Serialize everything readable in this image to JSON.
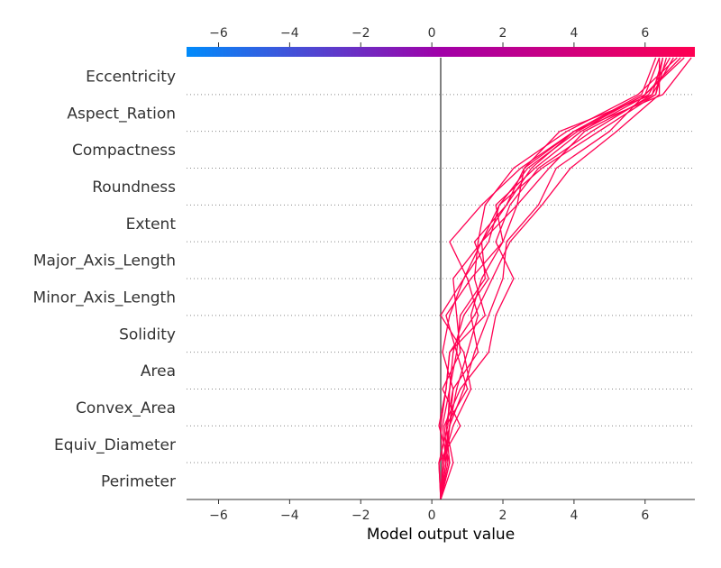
{
  "chart_data": {
    "type": "line",
    "title": "",
    "xlabel": "Model output value",
    "ylabel": "",
    "xlim": [
      -6.9,
      7.4
    ],
    "xticks": [
      -6,
      -4,
      -2,
      0,
      2,
      4,
      6
    ],
    "base_value": 0.25,
    "features": [
      "Eccentricity",
      "Aspect_Ration",
      "Compactness",
      "Roundness",
      "Extent",
      "Major_Axis_Length",
      "Minor_Axis_Length",
      "Solidity",
      "Area",
      "Convex_Area",
      "Equiv_Diameter",
      "Perimeter"
    ],
    "grid": "dotted-horizontal",
    "colorbar": {
      "position": "top",
      "from": "#008bfb",
      "mid": "#a100a8",
      "to": "#ff0052"
    },
    "line_color": "#ff0052",
    "series": [
      {
        "values": [
          0.25,
          0.3,
          0.5,
          0.7,
          1.0,
          1.3,
          1.0,
          0.5,
          1.4,
          2.5,
          4.0,
          6.5,
          7.3
        ]
      },
      {
        "values": [
          0.25,
          0.4,
          0.3,
          0.5,
          0.6,
          0.9,
          1.6,
          1.2,
          2.1,
          2.8,
          4.0,
          6.0,
          7.1
        ]
      },
      {
        "values": [
          0.25,
          0.5,
          0.2,
          0.4,
          0.5,
          1.5,
          1.2,
          1.3,
          1.5,
          2.3,
          3.8,
          5.8,
          6.9
        ]
      },
      {
        "values": [
          0.25,
          0.2,
          0.8,
          0.3,
          0.8,
          0.7,
          0.6,
          1.4,
          2.4,
          2.6,
          3.6,
          6.2,
          6.8
        ]
      },
      {
        "values": [
          0.25,
          0.6,
          0.4,
          0.6,
          1.3,
          1.1,
          1.4,
          2.0,
          1.8,
          2.9,
          4.2,
          6.1,
          6.7
        ]
      },
      {
        "values": [
          0.25,
          0.3,
          0.6,
          1.1,
          0.9,
          0.25,
          0.9,
          1.6,
          1.9,
          3.1,
          4.7,
          6.3,
          6.6
        ]
      },
      {
        "values": [
          0.25,
          0.45,
          0.35,
          0.8,
          1.6,
          1.8,
          2.3,
          1.8,
          2.2,
          3.0,
          4.5,
          6.2,
          6.5
        ]
      },
      {
        "values": [
          0.25,
          0.35,
          0.5,
          0.9,
          1.2,
          1.6,
          2.0,
          2.1,
          3.0,
          3.5,
          5.0,
          6.0,
          6.4
        ]
      },
      {
        "values": [
          0.25,
          0.2,
          0.45,
          0.5,
          0.7,
          0.4,
          1.1,
          2.0,
          2.4,
          3.3,
          4.3,
          6.3,
          6.5
        ]
      },
      {
        "values": [
          0.25,
          0.5,
          0.4,
          1.0,
          0.7,
          0.8,
          1.5,
          1.4,
          1.9,
          2.7,
          4.1,
          6.0,
          7.0
        ]
      },
      {
        "values": [
          0.25,
          0.3,
          0.25,
          0.4,
          0.5,
          1.2,
          1.7,
          2.2,
          3.1,
          3.9,
          5.2,
          6.4,
          6.4
        ]
      },
      {
        "values": [
          0.25,
          0.4,
          0.5,
          0.6,
          0.3,
          0.5,
          0.9,
          1.4,
          2.1,
          2.6,
          4.0,
          5.9,
          6.3
        ]
      }
    ]
  }
}
